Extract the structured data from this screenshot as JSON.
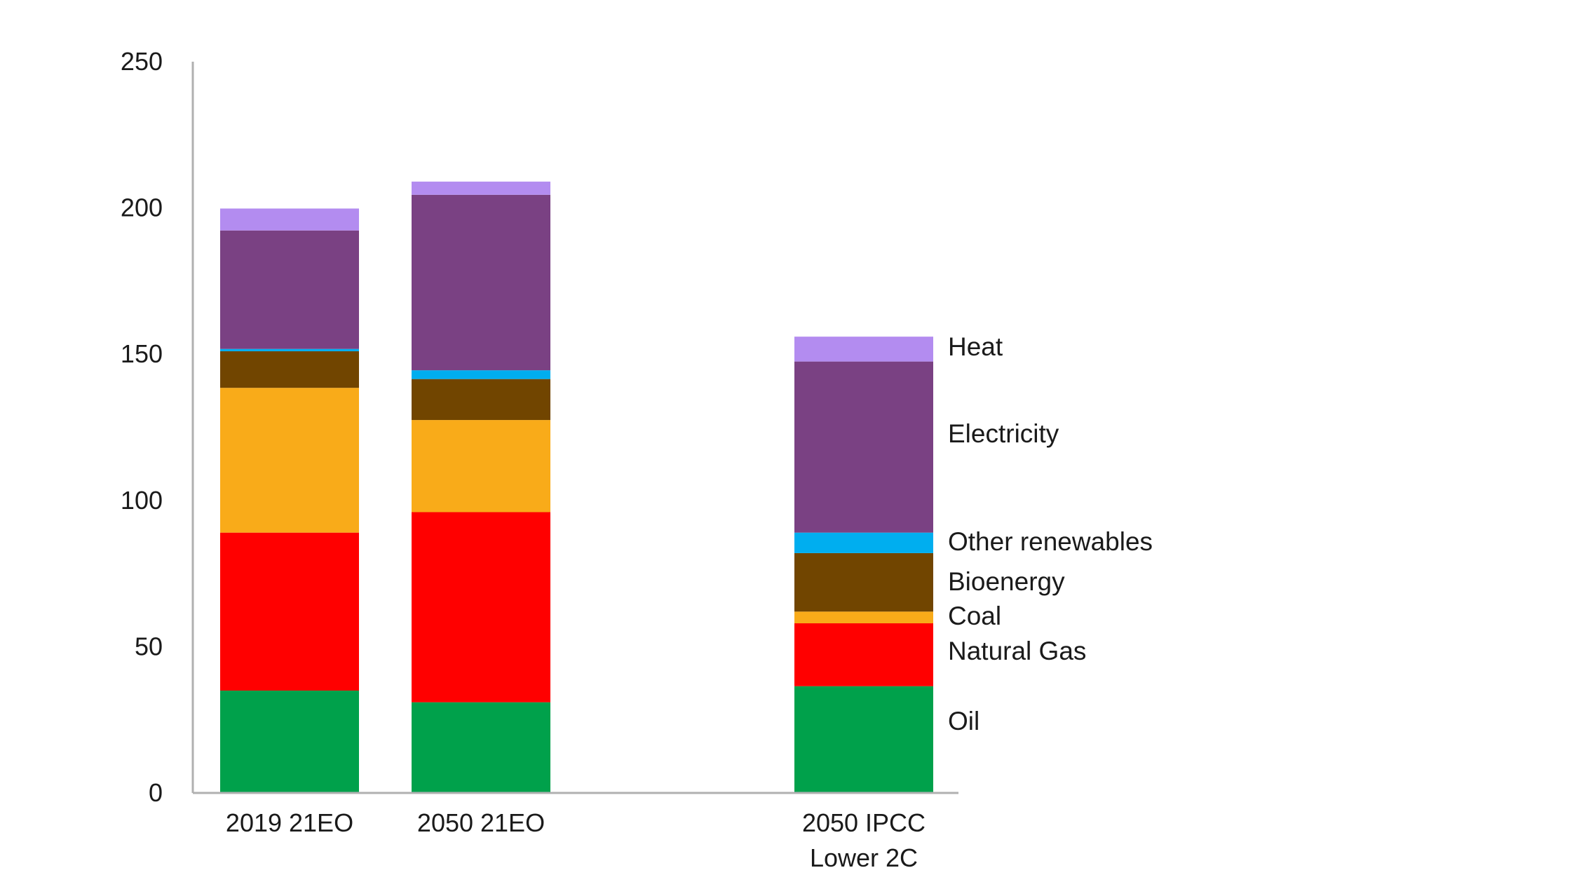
{
  "chart_data": {
    "type": "bar",
    "stacked": true,
    "categories": [
      [
        "2019 21EO"
      ],
      [
        "2050 21EO"
      ],
      [
        "2050 IPCC",
        "Lower 2C"
      ]
    ],
    "series": [
      {
        "name": "Oil",
        "color": "#00a14b",
        "values": [
          35.0,
          31.0,
          36.5
        ]
      },
      {
        "name": "Natural Gas",
        "color": "#ff0000",
        "values": [
          54.0,
          65.0,
          21.5
        ]
      },
      {
        "name": "Coal",
        "color": "#f9ab19",
        "values": [
          49.5,
          31.5,
          4.0
        ]
      },
      {
        "name": "Bioenergy",
        "color": "#714500",
        "values": [
          12.5,
          14.0,
          20.0
        ]
      },
      {
        "name": "Other renewables",
        "color": "#00aeef",
        "values": [
          0.8,
          3.0,
          7.0
        ]
      },
      {
        "name": "Electricity",
        "color": "#7a4183",
        "values": [
          40.5,
          60.0,
          58.5
        ]
      },
      {
        "name": "Heat",
        "color": "#b38cf0",
        "values": [
          7.5,
          4.5,
          8.5
        ]
      }
    ],
    "ylim": [
      0,
      250
    ],
    "yticks": [
      "0",
      "50",
      "100",
      "150",
      "200",
      "250"
    ],
    "ytick_values": [
      0,
      50,
      100,
      150,
      200,
      250
    ],
    "grid": false,
    "legend": "labels beside the third bar",
    "title": "",
    "xlabel": "",
    "ylabel": ""
  }
}
